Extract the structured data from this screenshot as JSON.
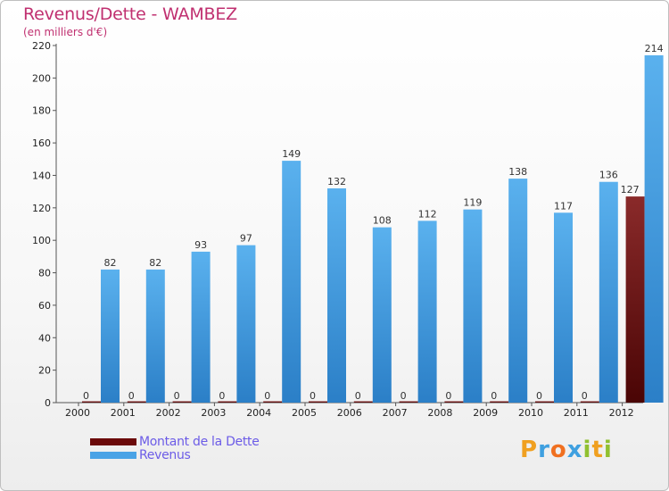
{
  "title": "Revenus/Dette - WAMBEZ",
  "subtitle": "(en milliers d'€)",
  "chart_data": {
    "type": "bar",
    "categories": [
      "2000",
      "2001",
      "2002",
      "2003",
      "2004",
      "2005",
      "2006",
      "2007",
      "2008",
      "2009",
      "2010",
      "2011",
      "2012"
    ],
    "series": [
      {
        "name": "Montant de la Dette",
        "values": [
          0,
          0,
          0,
          0,
          0,
          0,
          0,
          0,
          0,
          0,
          0,
          0,
          127
        ],
        "color": "#6b0a0a"
      },
      {
        "name": "Revenus",
        "values": [
          82,
          82,
          93,
          97,
          149,
          132,
          108,
          112,
          119,
          138,
          117,
          136,
          214
        ],
        "color": "#4aa3e6"
      }
    ],
    "ylim": [
      0,
      220
    ],
    "yticks": [
      0,
      20,
      40,
      60,
      80,
      100,
      120,
      140,
      160,
      180,
      200,
      220
    ],
    "grid": false,
    "legend_position": "bottom-left"
  },
  "legend": {
    "items": [
      {
        "label": "Montant de la Dette",
        "color": "#6b0a0a"
      },
      {
        "label": "Revenus",
        "color": "#4aa3e6"
      }
    ]
  },
  "brand": {
    "letters": [
      "P",
      "r",
      "o",
      "x",
      "i",
      "t",
      "i"
    ],
    "colors": [
      "#f0a020",
      "#3fa0e0",
      "#f07020",
      "#3fa0e0",
      "#90c030",
      "#f0a020",
      "#90c030"
    ]
  }
}
